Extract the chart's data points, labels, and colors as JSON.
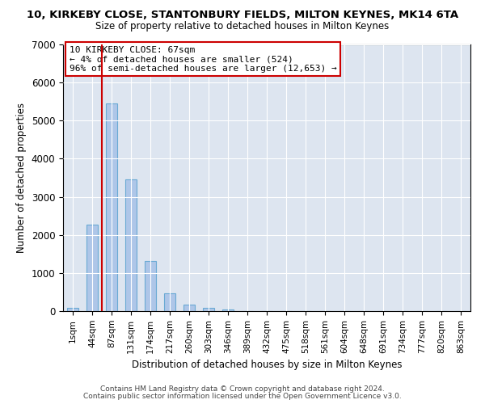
{
  "title_line1": "10, KIRKEBY CLOSE, STANTONBURY FIELDS, MILTON KEYNES, MK14 6TA",
  "title_line2": "Size of property relative to detached houses in Milton Keynes",
  "xlabel": "Distribution of detached houses by size in Milton Keynes",
  "ylabel": "Number of detached properties",
  "bar_labels": [
    "1sqm",
    "44sqm",
    "87sqm",
    "131sqm",
    "174sqm",
    "217sqm",
    "260sqm",
    "303sqm",
    "346sqm",
    "389sqm",
    "432sqm",
    "475sqm",
    "518sqm",
    "561sqm",
    "604sqm",
    "648sqm",
    "691sqm",
    "734sqm",
    "777sqm",
    "820sqm",
    "863sqm"
  ],
  "bar_values": [
    80,
    2270,
    5450,
    3450,
    1320,
    470,
    160,
    80,
    50,
    0,
    0,
    0,
    0,
    0,
    0,
    0,
    0,
    0,
    0,
    0,
    0
  ],
  "bar_color": "#aec6e8",
  "bar_edge_color": "#6aaad4",
  "vline_color": "#cc0000",
  "vline_x": 1.5,
  "annotation_text": "10 KIRKEBY CLOSE: 67sqm\n← 4% of detached houses are smaller (524)\n96% of semi-detached houses are larger (12,653) →",
  "annotation_box_facecolor": "#ffffff",
  "annotation_box_edgecolor": "#cc0000",
  "ylim_max": 7000,
  "yticks": [
    0,
    1000,
    2000,
    3000,
    4000,
    5000,
    6000,
    7000
  ],
  "bg_color": "#dde5f0",
  "grid_color": "#ffffff",
  "footer_line1": "Contains HM Land Registry data © Crown copyright and database right 2024.",
  "footer_line2": "Contains public sector information licensed under the Open Government Licence v3.0."
}
